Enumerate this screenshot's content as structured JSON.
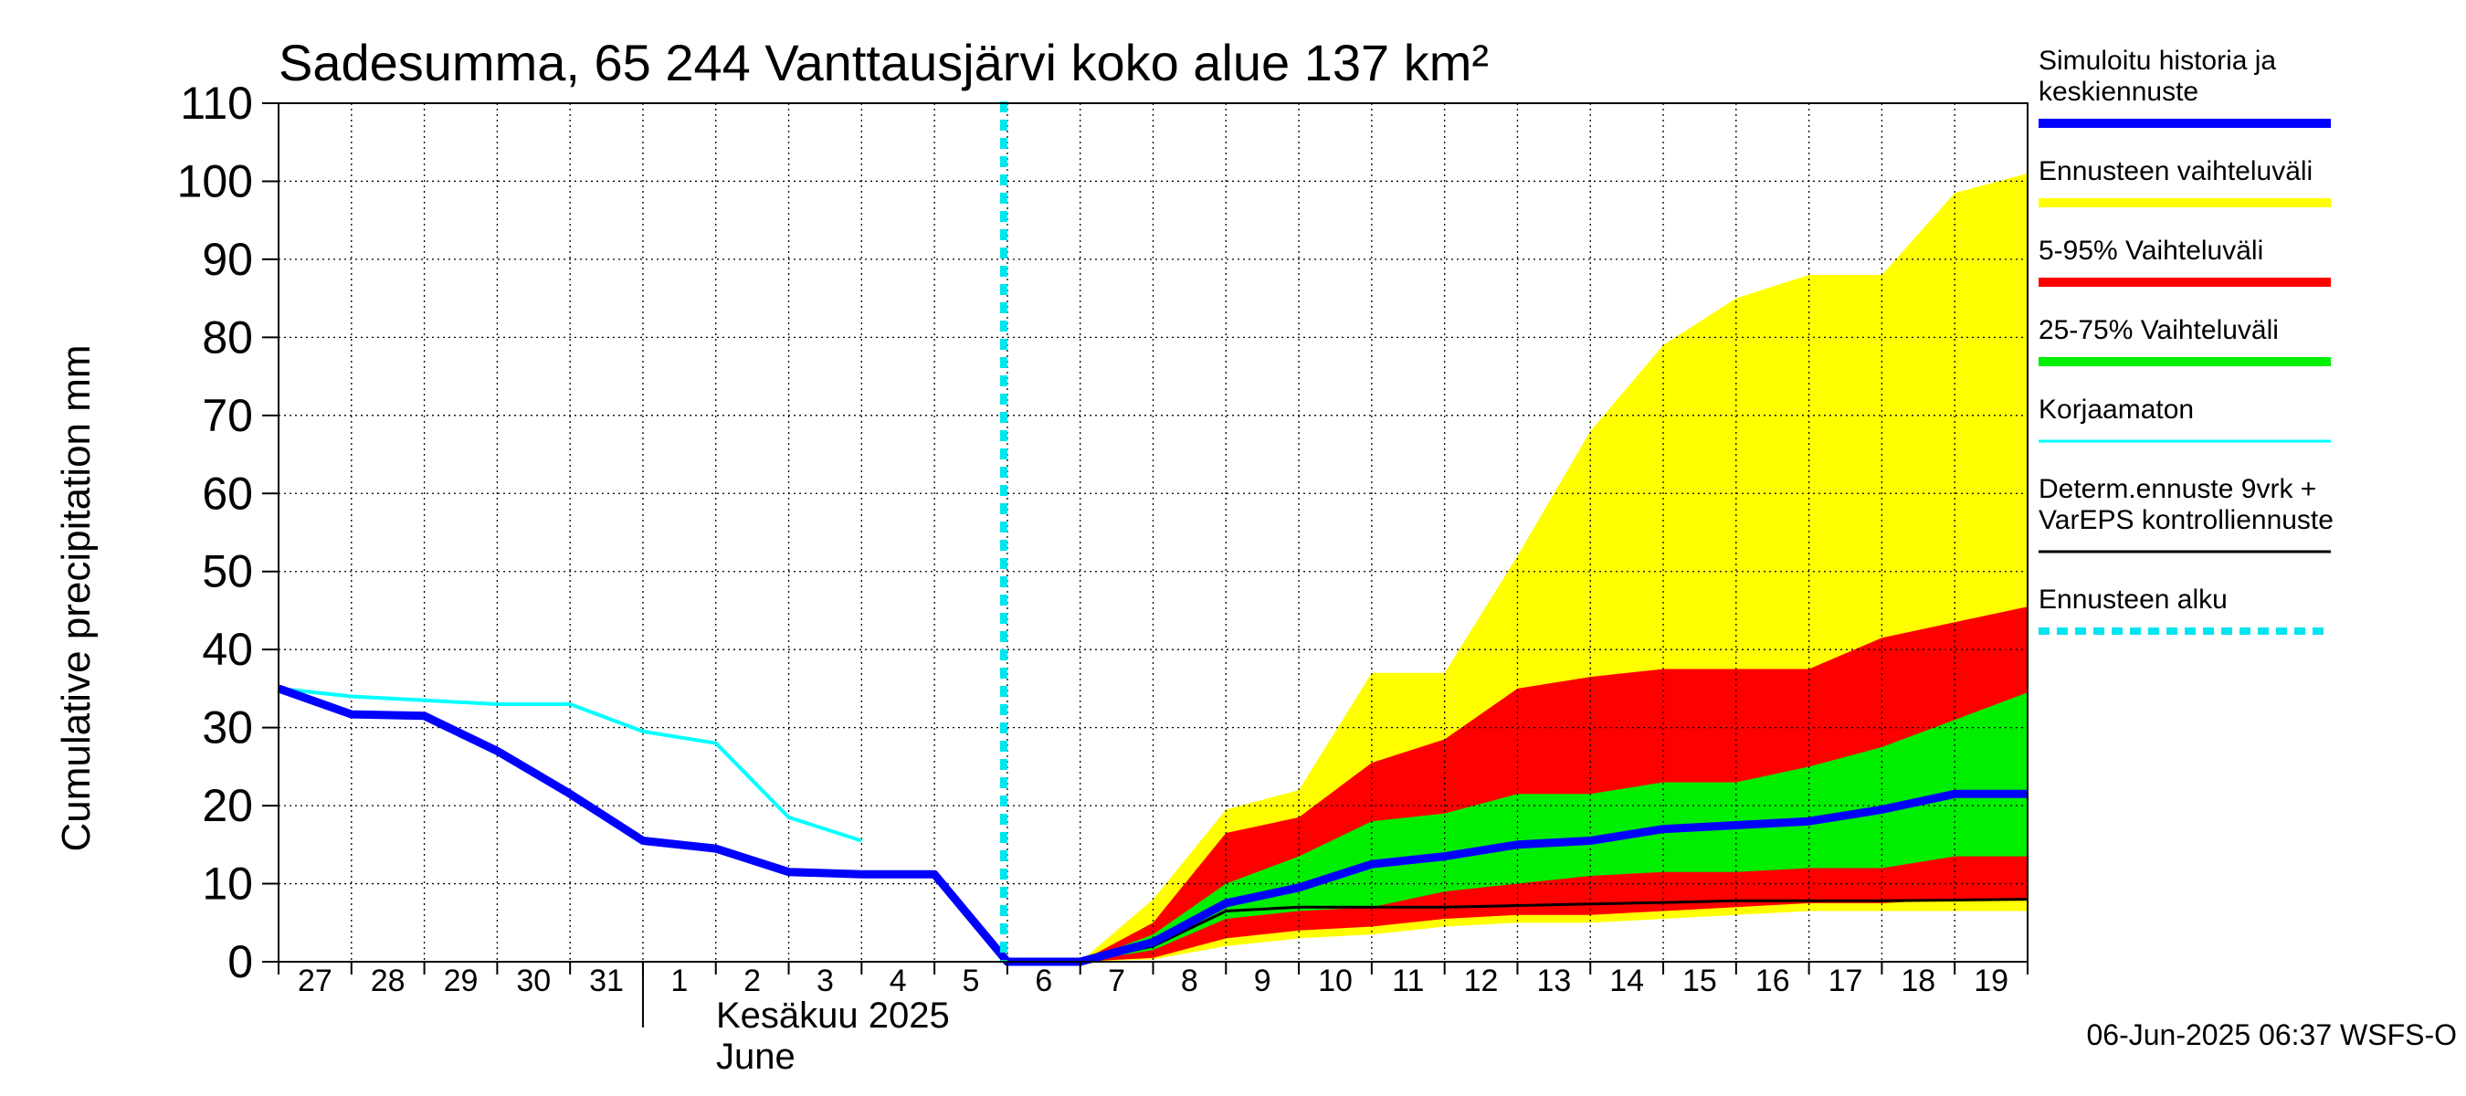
{
  "chart_data": {
    "type": "area",
    "title": "Sadesumma, 65 244 Vanttausjärvi koko alue 137 km²",
    "ylabel": "Cumulative precipitation   mm",
    "ylim": [
      0,
      110
    ],
    "yticks": [
      0,
      10,
      20,
      30,
      40,
      50,
      60,
      70,
      80,
      90,
      100,
      110
    ],
    "grid": true,
    "legend_position": "right",
    "x_day_labels": [
      "27",
      "28",
      "29",
      "30",
      "31",
      "1",
      "2",
      "3",
      "4",
      "5",
      "6",
      "7",
      "8",
      "9",
      "10",
      "11",
      "12",
      "13",
      "14",
      "15",
      "16",
      "17",
      "18",
      "19"
    ],
    "x_start_date": "2025-05-27",
    "x_end_date": "2025-06-20",
    "month_labels": [
      "Kesäkuu  2025",
      "June"
    ],
    "forecast_start": "2025-06-06",
    "colors": {
      "simulated": "#0000ff",
      "range_full": "#ffff00",
      "range_5_95": "#ff0000",
      "range_25_75": "#00ee00",
      "uncorrected": "#00ffff",
      "deterministic": "#000000",
      "forecast_start": "#00e5ee"
    },
    "series": [
      {
        "name": "Ennusteen vaihteluväli",
        "kind": "band",
        "x": [
          "2025-06-06",
          "2025-06-07",
          "2025-06-08",
          "2025-06-09",
          "2025-06-10",
          "2025-06-11",
          "2025-06-12",
          "2025-06-13",
          "2025-06-14",
          "2025-06-15",
          "2025-06-16",
          "2025-06-17",
          "2025-06-18",
          "2025-06-19",
          "2025-06-20"
        ],
        "low": [
          0,
          0,
          0.3,
          2,
          3,
          3.5,
          4.5,
          5,
          5,
          5.5,
          6,
          6.5,
          6.5,
          6.5,
          6.5
        ],
        "high": [
          0,
          0,
          8,
          19.5,
          22,
          37,
          37,
          52,
          68,
          79,
          85,
          88,
          88,
          98.5,
          101
        ]
      },
      {
        "name": "5-95% Vaihteluväli",
        "kind": "band",
        "x": [
          "2025-06-06",
          "2025-06-07",
          "2025-06-08",
          "2025-06-09",
          "2025-06-10",
          "2025-06-11",
          "2025-06-12",
          "2025-06-13",
          "2025-06-14",
          "2025-06-15",
          "2025-06-16",
          "2025-06-17",
          "2025-06-18",
          "2025-06-19",
          "2025-06-20"
        ],
        "low": [
          0,
          0,
          0.5,
          3,
          4,
          4.5,
          5.5,
          6,
          6,
          6.5,
          7,
          7.5,
          7.5,
          8,
          8
        ],
        "high": [
          0,
          0,
          5,
          16.5,
          18.5,
          25.5,
          28.5,
          35,
          36.5,
          37.5,
          37.5,
          37.5,
          41.5,
          43.5,
          45.5
        ]
      },
      {
        "name": "25-75% Vaihteluväli",
        "kind": "band",
        "x": [
          "2025-06-06",
          "2025-06-07",
          "2025-06-08",
          "2025-06-09",
          "2025-06-10",
          "2025-06-11",
          "2025-06-12",
          "2025-06-13",
          "2025-06-14",
          "2025-06-15",
          "2025-06-16",
          "2025-06-17",
          "2025-06-18",
          "2025-06-19",
          "2025-06-20"
        ],
        "low": [
          0,
          0,
          1.5,
          5.5,
          6.5,
          7,
          9,
          10,
          11,
          11.5,
          11.5,
          12,
          12,
          13.5,
          13.5
        ],
        "high": [
          0,
          0,
          3.5,
          10,
          13.5,
          18,
          19,
          21.5,
          21.5,
          23,
          23,
          25,
          27.5,
          31,
          34.5
        ]
      },
      {
        "name": "Korjaamaton",
        "kind": "line",
        "x": [
          "2025-05-27",
          "2025-05-28",
          "2025-05-29",
          "2025-05-30",
          "2025-05-31",
          "2025-06-01",
          "2025-06-02",
          "2025-06-03",
          "2025-06-04"
        ],
        "y": [
          35,
          34,
          33.5,
          33,
          33,
          29.5,
          28,
          18.5,
          15.5
        ]
      },
      {
        "name": "Determ.ennuste 9vrk + VarEPS kontrolliennuste",
        "kind": "line",
        "x": [
          "2025-06-06",
          "2025-06-07",
          "2025-06-08",
          "2025-06-09",
          "2025-06-10",
          "2025-06-11",
          "2025-06-12",
          "2025-06-13",
          "2025-06-14",
          "2025-06-15",
          "2025-06-16",
          "2025-06-17",
          "2025-06-18",
          "2025-06-19",
          "2025-06-20"
        ],
        "y": [
          0,
          0,
          2,
          6.5,
          7,
          7,
          7,
          7.2,
          7.4,
          7.6,
          7.8,
          7.8,
          7.8,
          7.9,
          8
        ]
      },
      {
        "name": "Simuloitu historia ja keskiennuste",
        "kind": "line",
        "x": [
          "2025-05-27",
          "2025-05-28",
          "2025-05-29",
          "2025-05-30",
          "2025-05-31",
          "2025-06-01",
          "2025-06-02",
          "2025-06-03",
          "2025-06-04",
          "2025-06-05",
          "2025-06-06",
          "2025-06-07",
          "2025-06-08",
          "2025-06-09",
          "2025-06-10",
          "2025-06-11",
          "2025-06-12",
          "2025-06-13",
          "2025-06-14",
          "2025-06-15",
          "2025-06-16",
          "2025-06-17",
          "2025-06-18",
          "2025-06-19",
          "2025-06-20"
        ],
        "y": [
          35,
          31.7,
          31.5,
          27,
          21.5,
          15.5,
          14.5,
          11.5,
          11.2,
          11.2,
          0,
          0,
          2.5,
          7.5,
          9.5,
          12.5,
          13.5,
          15,
          15.5,
          17,
          17.5,
          18,
          19.5,
          21.5,
          21.5
        ]
      }
    ]
  },
  "legend": {
    "items": [
      {
        "label": "Simuloitu historia ja keskiennuste",
        "lines": [
          "Simuloitu historia ja",
          "keskiennuste"
        ],
        "color": "#0000ff",
        "style": "thick"
      },
      {
        "label": "Ennusteen vaihteluväli",
        "lines": [
          "Ennusteen vaihteluväli"
        ],
        "color": "#ffff00",
        "style": "thick"
      },
      {
        "label": "5-95% Vaihteluväli",
        "lines": [
          "5-95% Vaihteluväli"
        ],
        "color": "#ff0000",
        "style": "thick"
      },
      {
        "label": "25-75% Vaihteluväli",
        "lines": [
          "25-75% Vaihteluväli"
        ],
        "color": "#00ee00",
        "style": "thick"
      },
      {
        "label": "Korjaamaton",
        "lines": [
          "Korjaamaton"
        ],
        "color": "#00ffff",
        "style": "thin"
      },
      {
        "label": "Determ.ennuste 9vrk + VarEPS kontrolliennuste",
        "lines": [
          "Determ.ennuste 9vrk +",
          "VarEPS kontrolliennuste"
        ],
        "color": "#000000",
        "style": "thin"
      },
      {
        "label": "Ennusteen alku",
        "lines": [
          "Ennusteen alku"
        ],
        "color": "#00e5ee",
        "style": "dashed"
      }
    ]
  },
  "footer": "06-Jun-2025 06:37 WSFS-O"
}
